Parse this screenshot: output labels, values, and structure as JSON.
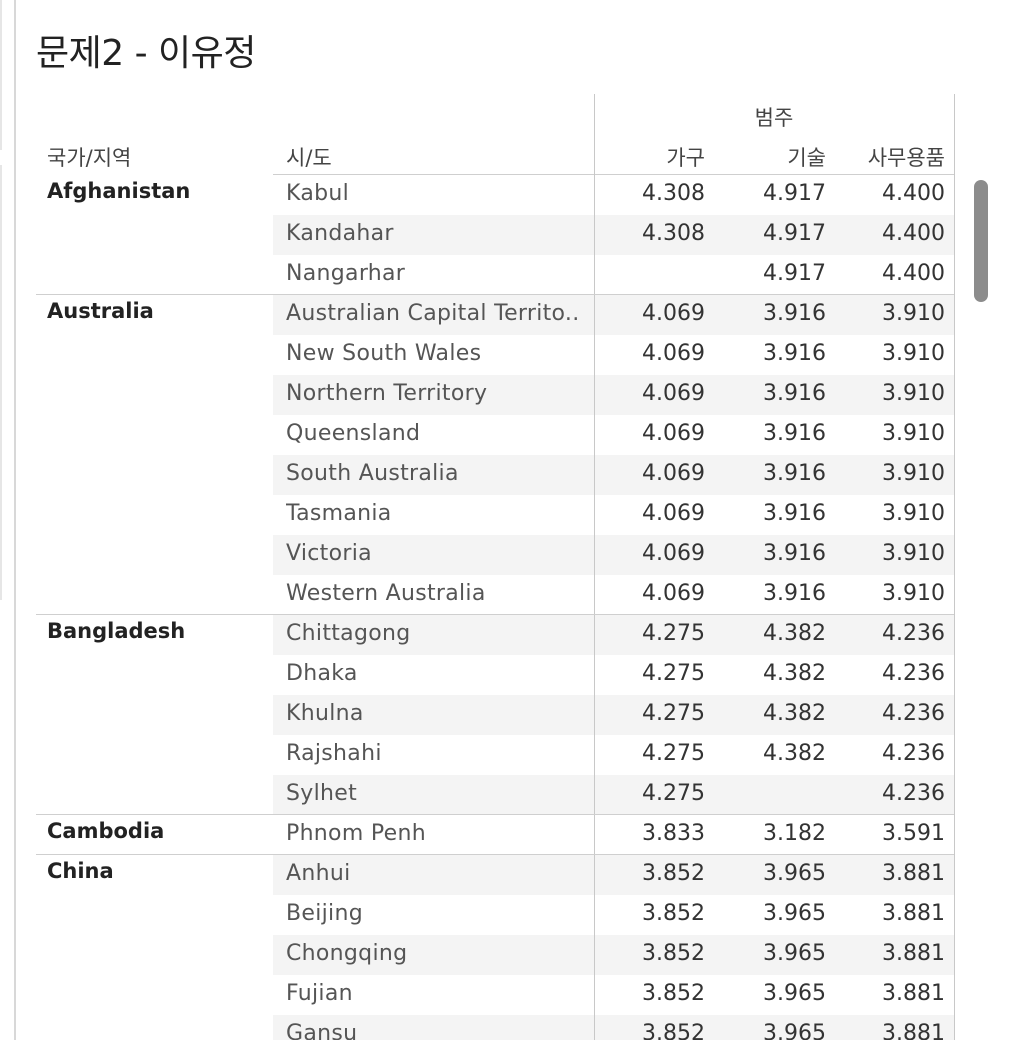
{
  "title": "문제2 - 이유정",
  "headers": {
    "country": "국가/지역",
    "state": "시/도",
    "group": "범주",
    "measures": [
      "가구",
      "기술",
      "사무용품"
    ]
  },
  "groups": [
    {
      "country": "Afghanistan",
      "rows": [
        {
          "state": "Kabul",
          "v": [
            "4.308",
            "4.917",
            "4.400"
          ]
        },
        {
          "state": "Kandahar",
          "v": [
            "4.308",
            "4.917",
            "4.400"
          ]
        },
        {
          "state": "Nangarhar",
          "v": [
            "",
            "4.917",
            "4.400"
          ]
        }
      ]
    },
    {
      "country": "Australia",
      "rows": [
        {
          "state": "Australian Capital Territo..",
          "v": [
            "4.069",
            "3.916",
            "3.910"
          ]
        },
        {
          "state": "New South Wales",
          "v": [
            "4.069",
            "3.916",
            "3.910"
          ]
        },
        {
          "state": "Northern Territory",
          "v": [
            "4.069",
            "3.916",
            "3.910"
          ]
        },
        {
          "state": "Queensland",
          "v": [
            "4.069",
            "3.916",
            "3.910"
          ]
        },
        {
          "state": "South Australia",
          "v": [
            "4.069",
            "3.916",
            "3.910"
          ]
        },
        {
          "state": "Tasmania",
          "v": [
            "4.069",
            "3.916",
            "3.910"
          ]
        },
        {
          "state": "Victoria",
          "v": [
            "4.069",
            "3.916",
            "3.910"
          ]
        },
        {
          "state": "Western Australia",
          "v": [
            "4.069",
            "3.916",
            "3.910"
          ]
        }
      ]
    },
    {
      "country": "Bangladesh",
      "rows": [
        {
          "state": "Chittagong",
          "v": [
            "4.275",
            "4.382",
            "4.236"
          ]
        },
        {
          "state": "Dhaka",
          "v": [
            "4.275",
            "4.382",
            "4.236"
          ]
        },
        {
          "state": "Khulna",
          "v": [
            "4.275",
            "4.382",
            "4.236"
          ]
        },
        {
          "state": "Rajshahi",
          "v": [
            "4.275",
            "4.382",
            "4.236"
          ]
        },
        {
          "state": "Sylhet",
          "v": [
            "4.275",
            "",
            "4.236"
          ]
        }
      ]
    },
    {
      "country": "Cambodia",
      "rows": [
        {
          "state": "Phnom Penh",
          "v": [
            "3.833",
            "3.182",
            "3.591"
          ]
        }
      ]
    },
    {
      "country": "China",
      "rows": [
        {
          "state": "Anhui",
          "v": [
            "3.852",
            "3.965",
            "3.881"
          ]
        },
        {
          "state": "Beijing",
          "v": [
            "3.852",
            "3.965",
            "3.881"
          ]
        },
        {
          "state": "Chongqing",
          "v": [
            "3.852",
            "3.965",
            "3.881"
          ]
        },
        {
          "state": "Fujian",
          "v": [
            "3.852",
            "3.965",
            "3.881"
          ]
        },
        {
          "state": "Gansu",
          "v": [
            "3.852",
            "3.965",
            "3.881"
          ]
        }
      ]
    }
  ]
}
